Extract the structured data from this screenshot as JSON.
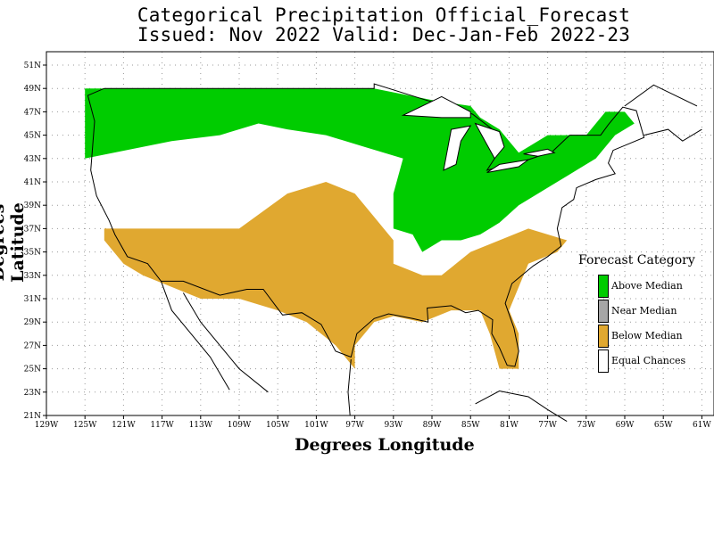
{
  "title": {
    "line1": "Categorical Precipitation Official_Forecast",
    "line2": "Issued: Nov 2022 Valid: Dec-Jan-Feb 2022-23"
  },
  "axes": {
    "ylabel": "Degrees Latitude",
    "xlabel": "Degrees Longitude",
    "lat_ticks": [
      "51N",
      "49N",
      "47N",
      "45N",
      "43N",
      "41N",
      "39N",
      "37N",
      "35N",
      "33N",
      "31N",
      "29N",
      "27N",
      "25N",
      "23N",
      "21N"
    ],
    "lon_ticks": [
      "129W",
      "125W",
      "121W",
      "117W",
      "113W",
      "109W",
      "105W",
      "101W",
      "97W",
      "93W",
      "89W",
      "85W",
      "81W",
      "77W",
      "73W",
      "69W",
      "65W",
      "61W"
    ],
    "lat_range": [
      21,
      52
    ],
    "lon_range": [
      -129,
      -61
    ],
    "grid": "dotted"
  },
  "legend": {
    "title": "Forecast Category",
    "items": [
      {
        "label": "Above Median",
        "color": "#00cc00"
      },
      {
        "label": "Near Median",
        "color": "#a6a6a6"
      },
      {
        "label": "Below Median",
        "color": "#e0a830"
      },
      {
        "label": "Equal Chances",
        "color": "#ffffff"
      }
    ]
  },
  "categories": {
    "above_median": {
      "color": "#00cc00",
      "regions": [
        [
          [
            -125,
            49
          ],
          [
            -95,
            49
          ],
          [
            -89,
            48
          ],
          [
            -85,
            47.5
          ],
          [
            -84,
            46.5
          ],
          [
            -82,
            45.5
          ],
          [
            -81,
            44.5
          ],
          [
            -80,
            43.5
          ],
          [
            -79,
            44
          ],
          [
            -77,
            45
          ],
          [
            -73,
            45
          ],
          [
            -71,
            47
          ],
          [
            -69,
            47
          ],
          [
            -68,
            46
          ],
          [
            -70,
            45
          ],
          [
            -72,
            43
          ],
          [
            -74,
            42
          ],
          [
            -76,
            41
          ],
          [
            -78,
            40
          ],
          [
            -80,
            39
          ],
          [
            -82,
            37.5
          ],
          [
            -84,
            36.5
          ],
          [
            -86,
            36
          ],
          [
            -88,
            36
          ],
          [
            -90,
            35
          ],
          [
            -91,
            36.5
          ],
          [
            -93,
            37
          ],
          [
            -93,
            40
          ],
          [
            -92,
            43
          ],
          [
            -96,
            44
          ],
          [
            -100,
            45
          ],
          [
            -104,
            45.5
          ],
          [
            -107,
            46
          ],
          [
            -111,
            45
          ],
          [
            -116,
            44.5
          ],
          [
            -122,
            43.5
          ],
          [
            -125,
            43
          ]
        ]
      ]
    },
    "below_median": {
      "color": "#e0a830",
      "regions": [
        [
          [
            -123,
            37
          ],
          [
            -109,
            37
          ],
          [
            -104,
            40
          ],
          [
            -100,
            41
          ],
          [
            -97,
            40
          ],
          [
            -95,
            38
          ],
          [
            -93,
            36
          ],
          [
            -93,
            34
          ],
          [
            -90,
            33
          ],
          [
            -88,
            33
          ],
          [
            -85,
            35
          ],
          [
            -82,
            36
          ],
          [
            -79,
            37
          ],
          [
            -75,
            36
          ],
          [
            -76,
            35
          ],
          [
            -79,
            34
          ],
          [
            -80,
            32
          ],
          [
            -81,
            30
          ],
          [
            -80,
            28
          ],
          [
            -80,
            25
          ],
          [
            -82,
            25
          ],
          [
            -83,
            28
          ],
          [
            -84,
            30
          ],
          [
            -87,
            30
          ],
          [
            -90,
            29
          ],
          [
            -93,
            29.5
          ],
          [
            -95,
            29
          ],
          [
            -97,
            27
          ],
          [
            -97,
            25
          ],
          [
            -99,
            27
          ],
          [
            -102,
            29
          ],
          [
            -105,
            30
          ],
          [
            -109,
            31
          ],
          [
            -113,
            31
          ],
          [
            -116,
            32
          ],
          [
            -119,
            33
          ],
          [
            -121,
            34
          ],
          [
            -123,
            36
          ]
        ]
      ]
    },
    "equal_chances_note": "remaining area within the contiguous US"
  }
}
